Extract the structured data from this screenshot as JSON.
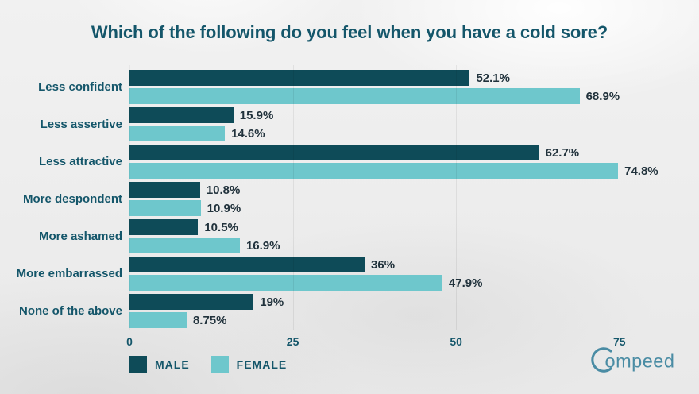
{
  "title": "Which of the following do you feel when you have a cold sore?",
  "colors": {
    "male": "#0e4b58",
    "female": "#6ec7cc",
    "teal_text": "#14566a",
    "value_text": "#21323c",
    "gridline": "#e0e0e0",
    "logo": "#4a8ca4",
    "background": "#eeeeee"
  },
  "legend": [
    {
      "label": "MALE",
      "color": "#0e4b58"
    },
    {
      "label": "FEMALE",
      "color": "#6ec7cc"
    }
  ],
  "logo": {
    "name": "Compeed",
    "wordmark_tail": "ompeed"
  },
  "chart_data": {
    "type": "bar",
    "orientation": "horizontal",
    "title": "Which of the following do you feel when you have a cold sore?",
    "categories": [
      "Less confident",
      "Less assertive",
      "Less attractive",
      "More despondent",
      "More ashamed",
      "More embarrassed",
      "None of the above"
    ],
    "series": [
      {
        "name": "MALE",
        "color": "#0e4b58",
        "values": [
          52.1,
          15.9,
          62.7,
          10.8,
          10.5,
          36,
          19
        ],
        "labels": [
          "52.1%",
          "15.9%",
          "62.7%",
          "10.8%",
          "10.5%",
          "36%",
          "19%"
        ]
      },
      {
        "name": "FEMALE",
        "color": "#6ec7cc",
        "values": [
          68.9,
          14.6,
          74.8,
          10.9,
          16.9,
          47.9,
          8.75
        ],
        "labels": [
          "68.9%",
          "14.6%",
          "74.8%",
          "10.9%",
          "16.9%",
          "47.9%",
          "8.75%"
        ]
      }
    ],
    "x_ticks": [
      0,
      25,
      50,
      75
    ],
    "xlim": [
      0,
      85
    ],
    "grid": "vertical",
    "legend_position": "bottom-left",
    "value_labels": "outside-end"
  }
}
